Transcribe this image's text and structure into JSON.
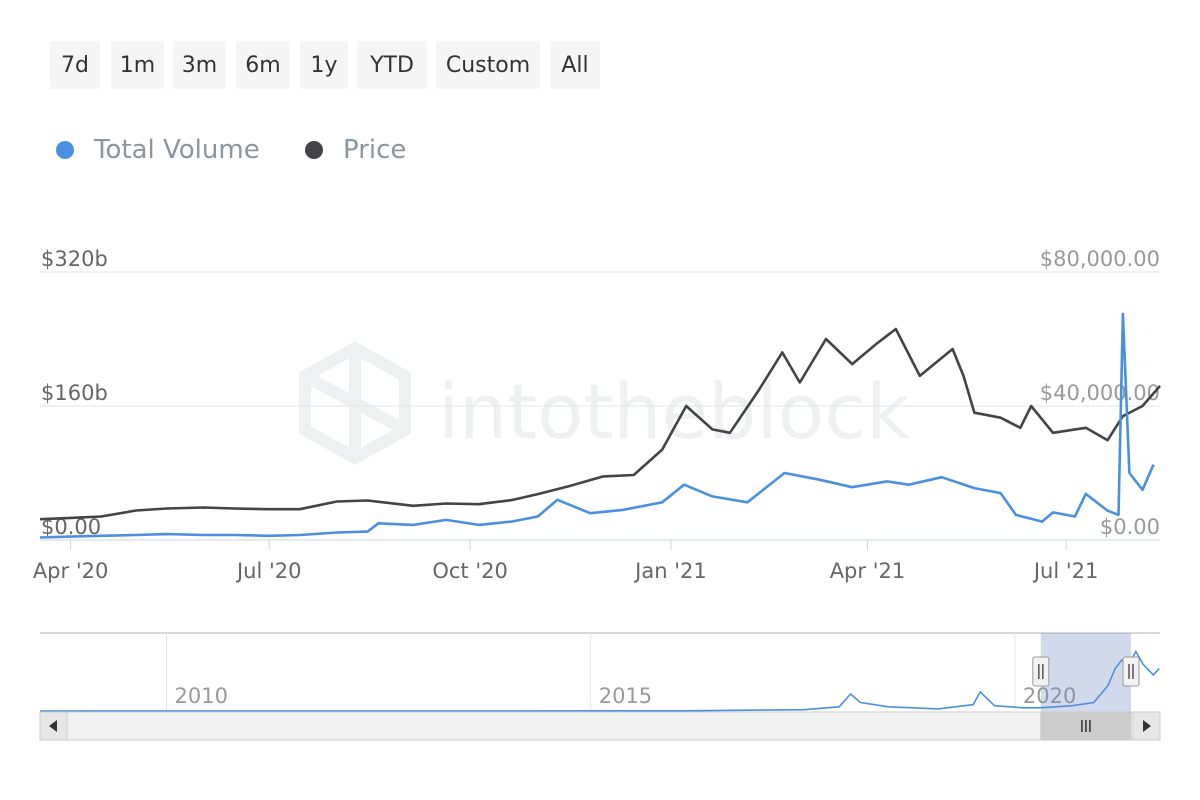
{
  "range_buttons": [
    "7d",
    "1m",
    "3m",
    "6m",
    "1y",
    "YTD",
    "Custom",
    "All"
  ],
  "watermark": "intotheblock",
  "chart_data": {
    "type": "line",
    "legend_placement": "top-left",
    "series": [
      {
        "name": "Total Volume",
        "axis": "left",
        "color": "#4a90e2",
        "points": [
          [
            "2020-03-18",
            3
          ],
          [
            "2020-04-01",
            4
          ],
          [
            "2020-04-15",
            5
          ],
          [
            "2020-05-01",
            6
          ],
          [
            "2020-05-15",
            7
          ],
          [
            "2020-06-01",
            6
          ],
          [
            "2020-06-15",
            6
          ],
          [
            "2020-07-01",
            5
          ],
          [
            "2020-07-15",
            6
          ],
          [
            "2020-08-01",
            9
          ],
          [
            "2020-08-15",
            10
          ],
          [
            "2020-08-20",
            20
          ],
          [
            "2020-09-05",
            18
          ],
          [
            "2020-09-20",
            24
          ],
          [
            "2020-10-05",
            18
          ],
          [
            "2020-10-20",
            22
          ],
          [
            "2020-11-01",
            28
          ],
          [
            "2020-11-10",
            48
          ],
          [
            "2020-11-25",
            32
          ],
          [
            "2020-12-10",
            36
          ],
          [
            "2020-12-28",
            45
          ],
          [
            "2021-01-07",
            66
          ],
          [
            "2021-01-20",
            52
          ],
          [
            "2021-02-05",
            45
          ],
          [
            "2021-02-22",
            80
          ],
          [
            "2021-03-10",
            72
          ],
          [
            "2021-03-25",
            63
          ],
          [
            "2021-04-10",
            70
          ],
          [
            "2021-04-20",
            66
          ],
          [
            "2021-05-05",
            75
          ],
          [
            "2021-05-20",
            62
          ],
          [
            "2021-06-01",
            56
          ],
          [
            "2021-06-08",
            30
          ],
          [
            "2021-06-20",
            22
          ],
          [
            "2021-06-25",
            33
          ],
          [
            "2021-07-05",
            28
          ],
          [
            "2021-07-10",
            55
          ],
          [
            "2021-07-20",
            35
          ],
          [
            "2021-07-25",
            30
          ],
          [
            "2021-07-27",
            270
          ],
          [
            "2021-07-30",
            80
          ],
          [
            "2021-08-05",
            60
          ],
          [
            "2021-08-10",
            90
          ]
        ]
      },
      {
        "name": "Price",
        "axis": "right",
        "color": "#434348",
        "points": [
          [
            "2020-03-18",
            6200
          ],
          [
            "2020-04-01",
            6600
          ],
          [
            "2020-04-15",
            7000
          ],
          [
            "2020-05-01",
            8800
          ],
          [
            "2020-05-15",
            9400
          ],
          [
            "2020-06-01",
            9700
          ],
          [
            "2020-06-15",
            9400
          ],
          [
            "2020-07-01",
            9200
          ],
          [
            "2020-07-15",
            9200
          ],
          [
            "2020-08-01",
            11500
          ],
          [
            "2020-08-15",
            11800
          ],
          [
            "2020-09-05",
            10200
          ],
          [
            "2020-09-20",
            10900
          ],
          [
            "2020-10-05",
            10700
          ],
          [
            "2020-10-20",
            11900
          ],
          [
            "2020-11-01",
            13700
          ],
          [
            "2020-11-15",
            16000
          ],
          [
            "2020-12-01",
            19000
          ],
          [
            "2020-12-15",
            19400
          ],
          [
            "2020-12-28",
            27000
          ],
          [
            "2021-01-08",
            40000
          ],
          [
            "2021-01-20",
            33000
          ],
          [
            "2021-01-28",
            32000
          ],
          [
            "2021-02-10",
            44500
          ],
          [
            "2021-02-21",
            56000
          ],
          [
            "2021-03-01",
            47000
          ],
          [
            "2021-03-13",
            60000
          ],
          [
            "2021-03-25",
            52500
          ],
          [
            "2021-04-05",
            58500
          ],
          [
            "2021-04-14",
            63000
          ],
          [
            "2021-04-25",
            49000
          ],
          [
            "2021-05-10",
            57000
          ],
          [
            "2021-05-15",
            49000
          ],
          [
            "2021-05-20",
            38000
          ],
          [
            "2021-06-01",
            36500
          ],
          [
            "2021-06-10",
            33500
          ],
          [
            "2021-06-15",
            40000
          ],
          [
            "2021-06-25",
            32000
          ],
          [
            "2021-07-10",
            33500
          ],
          [
            "2021-07-20",
            29800
          ],
          [
            "2021-07-27",
            37000
          ],
          [
            "2021-08-05",
            40000
          ],
          [
            "2021-08-13",
            46000
          ]
        ]
      }
    ],
    "left_axis": {
      "ticks": [
        "$0.00",
        "$160b",
        "$320b"
      ],
      "range": [
        0,
        320
      ]
    },
    "right_axis": {
      "ticks": [
        "$0.00",
        "$40,000.00",
        "$80,000.00"
      ],
      "range": [
        0,
        80000
      ]
    },
    "x_axis": {
      "range": [
        "2020-03-18",
        "2021-08-13"
      ],
      "ticks": [
        [
          "2020-04-01",
          "Apr '20"
        ],
        [
          "2020-07-01",
          "Jul '20"
        ],
        [
          "2020-10-01",
          "Oct '20"
        ],
        [
          "2021-01-01",
          "Jan '21"
        ],
        [
          "2021-04-01",
          "Apr '21"
        ],
        [
          "2021-07-01",
          "Jul '21"
        ]
      ]
    },
    "grid": true,
    "navigator": {
      "x_range": [
        "2008-06-01",
        "2021-08-13"
      ],
      "selected_range": [
        "2020-03-18",
        "2021-08-13"
      ],
      "tick_labels": [
        [
          "2010-01-01",
          "2010"
        ],
        [
          "2015-01-01",
          "2015"
        ],
        [
          "2020-01-01",
          "2020"
        ]
      ],
      "y_max": 320,
      "volume_points": [
        [
          "2008-06-01",
          0
        ],
        [
          "2014-01-01",
          0.3
        ],
        [
          "2016-01-01",
          1
        ],
        [
          "2017-06-01",
          6
        ],
        [
          "2017-11-01",
          20
        ],
        [
          "2017-12-20",
          80
        ],
        [
          "2018-02-01",
          40
        ],
        [
          "2018-06-01",
          20
        ],
        [
          "2019-01-01",
          10
        ],
        [
          "2019-06-01",
          30
        ],
        [
          "2019-07-01",
          90
        ],
        [
          "2019-09-01",
          25
        ],
        [
          "2020-01-01",
          15
        ],
        [
          "2020-03-15",
          15
        ],
        [
          "2020-08-01",
          25
        ],
        [
          "2020-11-01",
          40
        ],
        [
          "2021-01-01",
          120
        ],
        [
          "2021-02-01",
          200
        ],
        [
          "2021-03-01",
          240
        ],
        [
          "2021-04-01",
          220
        ],
        [
          "2021-05-01",
          280
        ],
        [
          "2021-06-01",
          220
        ],
        [
          "2021-07-15",
          170
        ],
        [
          "2021-08-10",
          200
        ]
      ]
    }
  }
}
